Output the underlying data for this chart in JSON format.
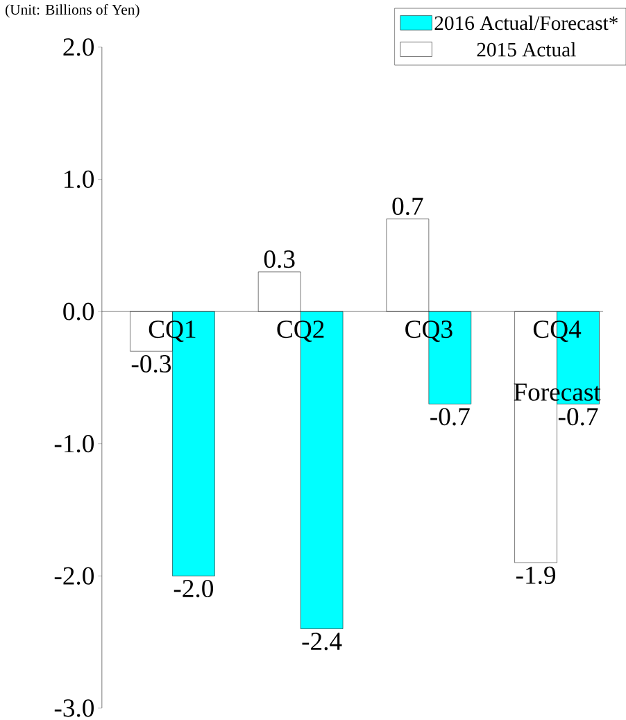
{
  "chart_data": {
    "type": "bar",
    "categories": [
      "CQ1",
      "CQ2",
      "CQ3",
      "CQ4"
    ],
    "series": [
      {
        "name": "2015 Actual",
        "color": "#ffffff",
        "values": [
          -0.3,
          0.3,
          0.7,
          -1.9
        ],
        "value_labels": [
          "-0.3",
          "0.3",
          "0.7",
          "-1.9"
        ]
      },
      {
        "name": "2016 Actual/Forecast*",
        "color": "#00ffff",
        "values": [
          -2.0,
          -2.4,
          -0.7,
          -0.7
        ],
        "value_labels": [
          "-2.0",
          "-2.4",
          "-0.7",
          "-0.7"
        ]
      }
    ],
    "ylim": [
      -3.0,
      2.0
    ],
    "yticks": [
      {
        "value": 2.0,
        "label": "2.0"
      },
      {
        "value": 1.0,
        "label": "1.0"
      },
      {
        "value": 0,
        "label": "0.0"
      },
      {
        "value": -1.0,
        "label": "-1.0"
      },
      {
        "value": -2.0,
        "label": "-2.0"
      },
      {
        "value": -3.0,
        "label": "-3.0"
      }
    ],
    "legend": "top right",
    "annotations": [
      "(Unit: Billions of Yen)",
      {
        "text": "Forecast",
        "x": "CQ4",
        "y": -0.7
      }
    ]
  }
}
